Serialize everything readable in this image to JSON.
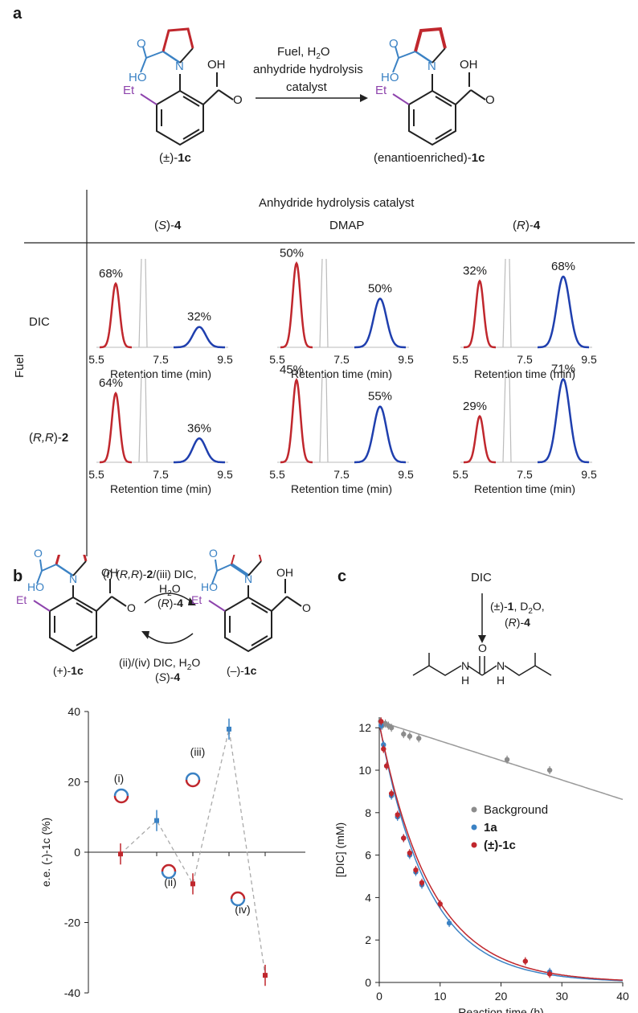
{
  "panel_a": {
    "letter": "a",
    "reagent_line1": "Fuel, H",
    "reagent_line1_sub": "2",
    "reagent_line1_tail": "O",
    "reagent_line2": "anhydride hydrolysis",
    "reagent_line3": "catalyst",
    "left_compound_prefix": "(±)-",
    "left_compound_id": "1c",
    "right_compound_prefix": "(enantioenriched)-",
    "right_compound_id": "1c",
    "atoms": {
      "o": "O",
      "oh": "OH",
      "ho": "HO",
      "n": "N",
      "et": "Et"
    }
  },
  "grid": {
    "header": "Anhydride hydrolysis catalyst",
    "col_headers": [
      {
        "pre": "(",
        "ital": "S",
        "post": ")-",
        "bold": "4"
      },
      {
        "pre": "DMAP",
        "ital": "",
        "post": "",
        "bold": ""
      },
      {
        "pre": "(",
        "ital": "R",
        "post": ")-",
        "bold": "4"
      }
    ],
    "row_axis_label": "Fuel",
    "row_headers": [
      {
        "pre": "DIC",
        "ital": "",
        "post": "",
        "bold": ""
      },
      {
        "pre": "(",
        "ital": "R,R",
        "post": ")-",
        "bold": "2"
      }
    ],
    "x_ticks": [
      "5.5",
      "7.5",
      "9.5"
    ],
    "x_label": "Retention time (min)",
    "cells": [
      {
        "red": "68%",
        "blue": "32%",
        "redH": 0.72,
        "blueH": 0.23
      },
      {
        "red": "50%",
        "blue": "50%",
        "redH": 0.95,
        "blueH": 0.55
      },
      {
        "red": "32%",
        "blue": "68%",
        "redH": 0.75,
        "blueH": 0.8
      },
      {
        "red": "64%",
        "blue": "36%",
        "redH": 0.78,
        "blueH": 0.27
      },
      {
        "red": "45%",
        "blue": "55%",
        "redH": 0.93,
        "blueH": 0.63
      },
      {
        "red": "29%",
        "blue": "71%",
        "redH": 0.52,
        "blueH": 0.94
      }
    ]
  },
  "panel_b": {
    "letter": "b",
    "top_line1_pre": "(i) (",
    "top_line1_ital": "R,R",
    "top_line1_post": ")-",
    "top_line1_bold": "2",
    "top_line1_tail": "/(iii) DIC,",
    "top_line2": "H",
    "top_line2_sub": "2",
    "top_line2_tail": "O",
    "top_line3_pre": "(",
    "top_line3_ital": "R",
    "top_line3_post": ")-",
    "top_line3_bold": "4",
    "bottom_line1": "(ii)/(iv)  DIC, H",
    "bottom_line1_sub": "2",
    "bottom_line1_tail": "O",
    "bottom_line2_pre": "(",
    "bottom_line2_ital": "S",
    "bottom_line2_post": ")-",
    "bottom_line2_bold": "4",
    "left_compound": "(+)-",
    "left_compound_bold": "1c",
    "right_compound": "(–)-",
    "right_compound_bold": "1c",
    "annotations": [
      "(i)",
      "(ii)",
      "(iii)",
      "(iv)"
    ]
  },
  "panel_c": {
    "letter": "c",
    "reagent_top": "DIC",
    "arrow_line1": "(±)-",
    "arrow_line1_bold": "1",
    "arrow_line1_tail": ", D",
    "arrow_line1_sub": "2",
    "arrow_line1_tail2": "O,",
    "arrow_line2_pre": "(",
    "arrow_line2_ital": "R",
    "arrow_line2_post": ")-",
    "arrow_line2_bold": "4",
    "urea_o": "O",
    "urea_nh": "N",
    "urea_h": "H"
  },
  "chart_data": [
    {
      "type": "scatter",
      "title": "",
      "xlabel": "",
      "ylabel": "e.e. (-)-1c (%)",
      "ylim": [
        -40,
        40
      ],
      "y_ticks": [
        40,
        20,
        0,
        -20,
        -40
      ],
      "grid": false,
      "points": [
        {
          "step": 0,
          "value": -0.5,
          "err": 3,
          "color": "#c0272d"
        },
        {
          "step": 1,
          "value": 9,
          "err": 3,
          "color": "#3b82c4"
        },
        {
          "step": 2,
          "value": -9,
          "err": 3,
          "color": "#c0272d"
        },
        {
          "step": 3,
          "value": 35,
          "err": 3,
          "color": "#3b82c4"
        },
        {
          "step": 4,
          "value": -35,
          "err": 3,
          "color": "#c0272d"
        }
      ]
    },
    {
      "type": "line",
      "title": "",
      "xlabel": "Reaction time (h)",
      "ylabel": "[DIC] (mM)",
      "xlim": [
        0,
        40
      ],
      "ylim": [
        0,
        12.5
      ],
      "x_ticks": [
        0,
        10,
        20,
        30,
        40
      ],
      "y_ticks": [
        0,
        2,
        4,
        6,
        8,
        10,
        12
      ],
      "legend_position": "center-right",
      "series": [
        {
          "name": "Background",
          "bold": false,
          "color": "#8c8c8c",
          "x": [
            0.2,
            0.5,
            1,
            1.5,
            2,
            4,
            5,
            6.5,
            21,
            28
          ],
          "y": [
            12.3,
            12.1,
            12.2,
            12.1,
            12.0,
            11.7,
            11.6,
            11.5,
            10.5,
            10.0
          ]
        },
        {
          "name": "1a",
          "bold": true,
          "color": "#3b82c4",
          "x": [
            0.3,
            0.7,
            1.2,
            2,
            3,
            4,
            5,
            6,
            7,
            11.5,
            28
          ],
          "y": [
            12.1,
            11.2,
            10.2,
            8.8,
            7.8,
            6.8,
            6.0,
            5.2,
            4.6,
            2.8,
            0.5
          ]
        },
        {
          "name": "(±)-1c",
          "bold": true,
          "color": "#c0272d",
          "x": [
            0.3,
            0.7,
            1.2,
            2,
            3,
            4,
            5,
            6,
            7,
            10,
            24,
            28
          ],
          "y": [
            12.3,
            11.0,
            10.2,
            8.9,
            7.9,
            6.8,
            6.1,
            5.3,
            4.7,
            3.7,
            1.0,
            0.4
          ]
        }
      ]
    }
  ]
}
